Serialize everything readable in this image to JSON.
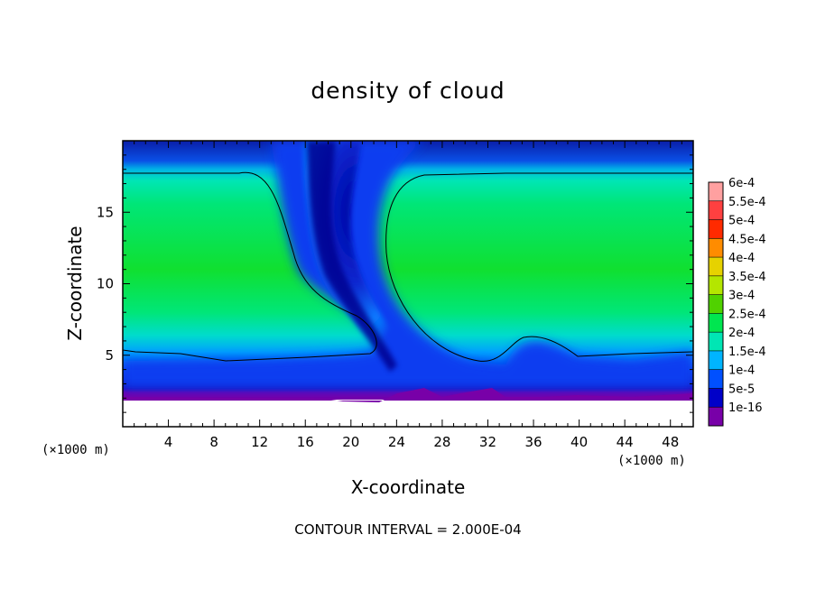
{
  "chart_data": {
    "type": "heatmap",
    "title": "density of cloud",
    "xlabel": "X-coordinate",
    "ylabel": "Z-coordinate",
    "x_unit": "(×1000 m)",
    "y_unit": "(×1000 m)",
    "xlim": [
      0,
      50
    ],
    "ylim": [
      0,
      20
    ],
    "x_ticks": [
      4,
      8,
      12,
      16,
      20,
      24,
      28,
      32,
      36,
      40,
      44,
      48
    ],
    "y_ticks": [
      5,
      10,
      15
    ],
    "colorbar": {
      "labels": [
        "6e-4",
        "5.5e-4",
        "5e-4",
        "4.5e-4",
        "4e-4",
        "3.5e-4",
        "3e-4",
        "2.5e-4",
        "2e-4",
        "1.5e-4",
        "1e-4",
        "5e-5",
        "1e-16"
      ],
      "colors": [
        "#ffa0a0",
        "#ff4040",
        "#ff2a00",
        "#ff8c00",
        "#e6d200",
        "#b4e600",
        "#50d200",
        "#00e650",
        "#00e6b4",
        "#00b4ff",
        "#0050ff",
        "#0000c8",
        "#7800a8"
      ]
    },
    "contour_interval": "CONTOUR INTERVAL = 2.000E-04"
  }
}
